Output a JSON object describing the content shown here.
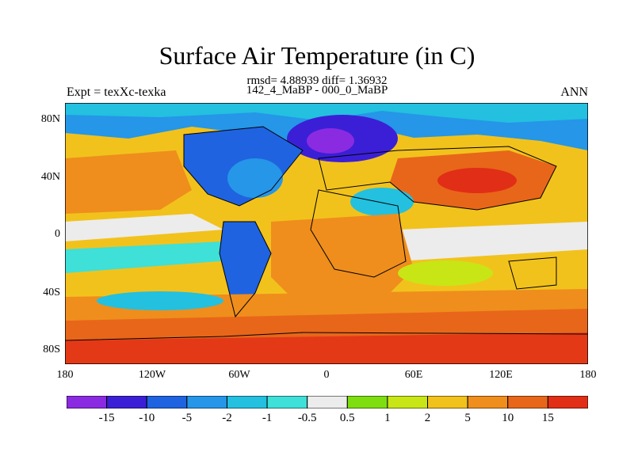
{
  "figure": {
    "title": "Surface Air Temperature (in C)",
    "stats": "rmsd= 4.88939 diff= 1.36932",
    "left_label": "Expt = texXc-texka",
    "center_label": "142_4_MaBP - 000_0_MaBP",
    "right_label": "ANN"
  },
  "axes": {
    "lat_ticks": [
      "80N",
      "40N",
      "0",
      "40S",
      "80S"
    ],
    "lon_ticks": [
      "180",
      "120W",
      "60W",
      "0",
      "60E",
      "120E",
      "180"
    ]
  },
  "colorbar": {
    "labels": [
      "-15",
      "-10",
      "-5",
      "-2",
      "-1",
      "-0.5",
      "0.5",
      "1",
      "2",
      "5",
      "10",
      "15"
    ],
    "colors": [
      "#8a2be2",
      "#3b1fd6",
      "#1f63e0",
      "#2596e8",
      "#23c0e0",
      "#3ee0d8",
      "#ececec",
      "#7ede10",
      "#c8e615",
      "#f2c21c",
      "#ef8e1c",
      "#e8661a",
      "#e12e16"
    ]
  }
}
